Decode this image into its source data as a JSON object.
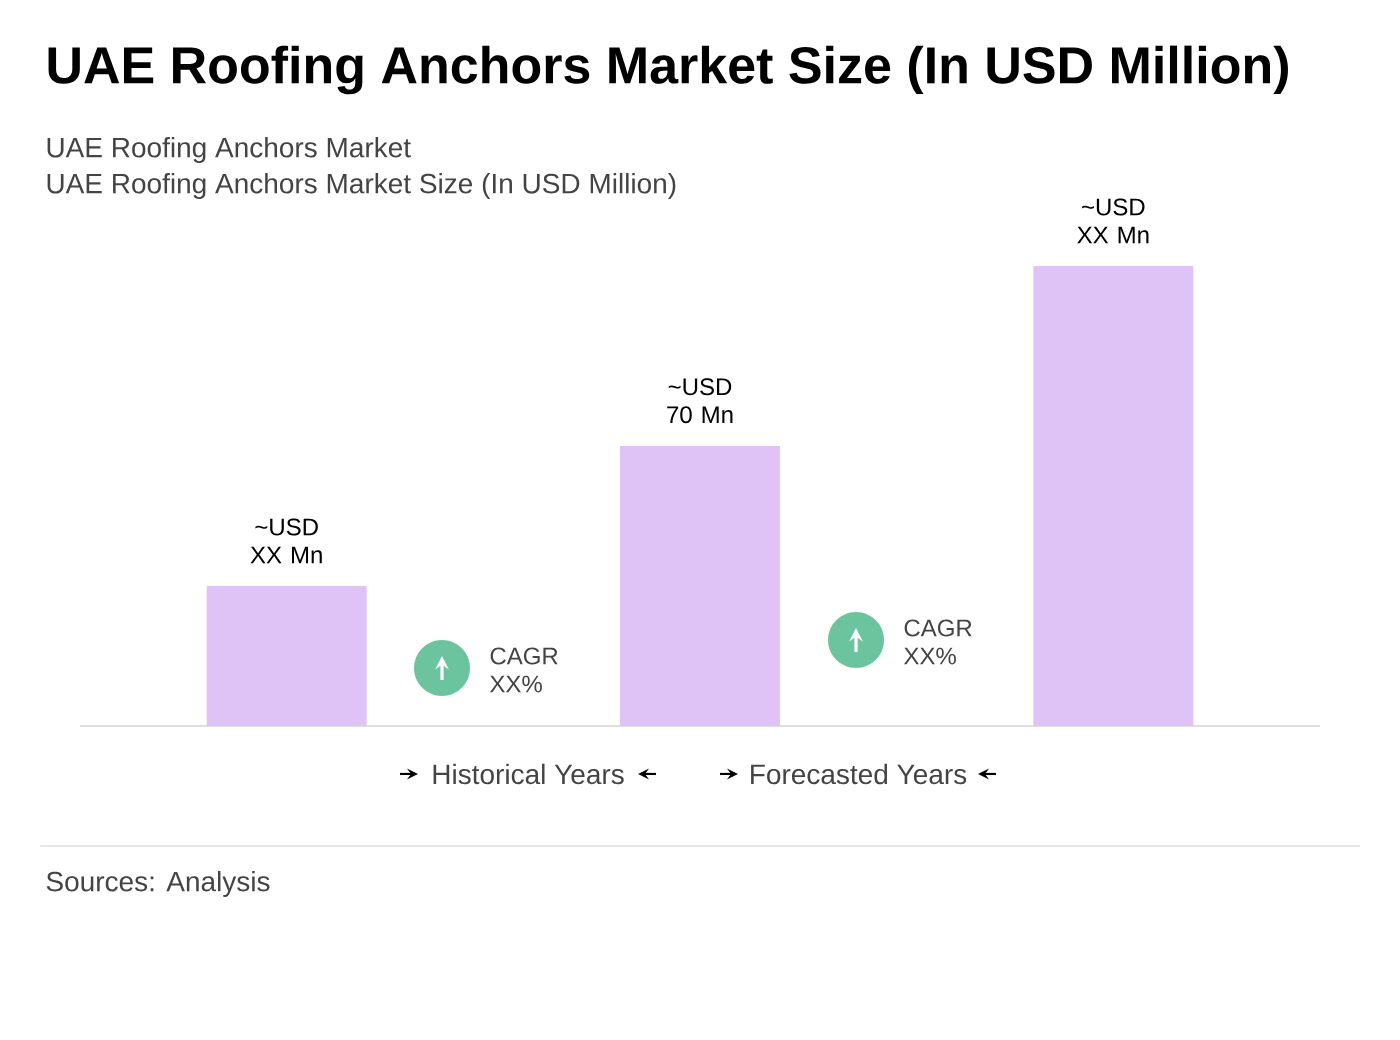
{
  "chart_data": {
    "type": "bar",
    "title": "UAE Roofing Anchors Market Size (In USD Million)",
    "subtitle": "UAE Roofing Anchors Market",
    "categories": [
      null,
      null,
      null
    ],
    "values": [
      35,
      70,
      115
    ],
    "value_labels": [
      "~USD XX Mn",
      "~USD 70 Mn",
      "~USD XX Mn"
    ],
    "color": "#dfc3f7",
    "annotations": [
      "UAE Roofing Anchors Market Size (In USD Million)",
      "CAGR XX%",
      "CAGR XX%",
      "Historical Years",
      "Forecasted Years",
      "Sources: Analysis"
    ]
  }
}
